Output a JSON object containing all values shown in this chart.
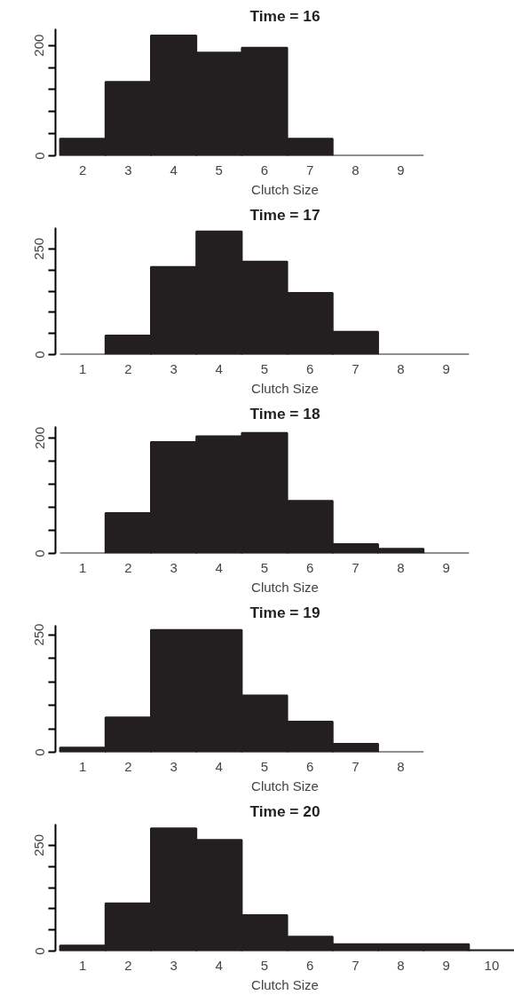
{
  "chart_data": [
    {
      "type": "bar",
      "title": "Time = 16",
      "xlabel": "Clutch Size",
      "color": "#231f20",
      "categories": [
        "2",
        "3",
        "4",
        "5",
        "6",
        "7",
        "8",
        "9"
      ],
      "values": [
        31,
        134,
        218,
        187,
        196,
        31,
        0,
        0
      ],
      "ylim": [
        0,
        230
      ],
      "yticks": [
        0,
        {
          "value": 40,
          "label": null
        },
        {
          "value": 80,
          "label": null
        },
        {
          "value": 120,
          "label": null
        },
        {
          "value": 160,
          "label": null
        },
        200
      ],
      "grid": false
    },
    {
      "type": "bar",
      "title": "Time = 17",
      "xlabel": "Clutch Size",
      "color": "#231f20",
      "categories": [
        "1",
        "2",
        "3",
        "4",
        "5",
        "6",
        "7",
        "8",
        "9"
      ],
      "values": [
        0,
        45,
        207,
        291,
        220,
        146,
        54,
        0,
        0
      ],
      "ylim": [
        0,
        300
      ],
      "yticks": [
        0,
        {
          "value": 50,
          "label": null
        },
        {
          "value": 100,
          "label": null
        },
        {
          "value": 150,
          "label": null
        },
        {
          "value": 200,
          "label": null
        },
        250
      ],
      "grid": false
    },
    {
      "type": "bar",
      "title": "Time = 18",
      "xlabel": "Clutch Size",
      "color": "#231f20",
      "categories": [
        "1",
        "2",
        "3",
        "4",
        "5",
        "6",
        "7",
        "8",
        "9"
      ],
      "values": [
        0,
        70,
        193,
        203,
        209,
        91,
        16,
        8,
        0
      ],
      "ylim": [
        0,
        220
      ],
      "yticks": [
        0,
        {
          "value": 40,
          "label": null
        },
        {
          "value": 80,
          "label": null
        },
        {
          "value": 120,
          "label": null
        },
        {
          "value": 160,
          "label": null
        },
        200
      ],
      "grid": false
    },
    {
      "type": "bar",
      "title": "Time = 19",
      "xlabel": "Clutch Size",
      "color": "#231f20",
      "categories": [
        "1",
        "2",
        "3",
        "4",
        "5",
        "6",
        "7",
        "8"
      ],
      "values": [
        10,
        74,
        260,
        260,
        121,
        65,
        18,
        0
      ],
      "ylim": [
        0,
        270
      ],
      "yticks": [
        0,
        {
          "value": 50,
          "label": null
        },
        {
          "value": 100,
          "label": null
        },
        {
          "value": 150,
          "label": null
        },
        {
          "value": 200,
          "label": null
        },
        250
      ],
      "grid": false
    },
    {
      "type": "bar",
      "title": "Time = 20",
      "xlabel": "Clutch Size",
      "color": "#231f20",
      "categories": [
        "1",
        "2",
        "3",
        "4",
        "5",
        "6",
        "7",
        "8",
        "9",
        "10"
      ],
      "values": [
        13,
        113,
        290,
        263,
        85,
        34,
        16,
        16,
        16,
        2
      ],
      "ylim": [
        0,
        300
      ],
      "yticks": [
        0,
        {
          "value": 50,
          "label": null
        },
        {
          "value": 100,
          "label": null
        },
        {
          "value": 150,
          "label": null
        },
        {
          "value": 200,
          "label": null
        },
        250
      ],
      "grid": false
    }
  ]
}
